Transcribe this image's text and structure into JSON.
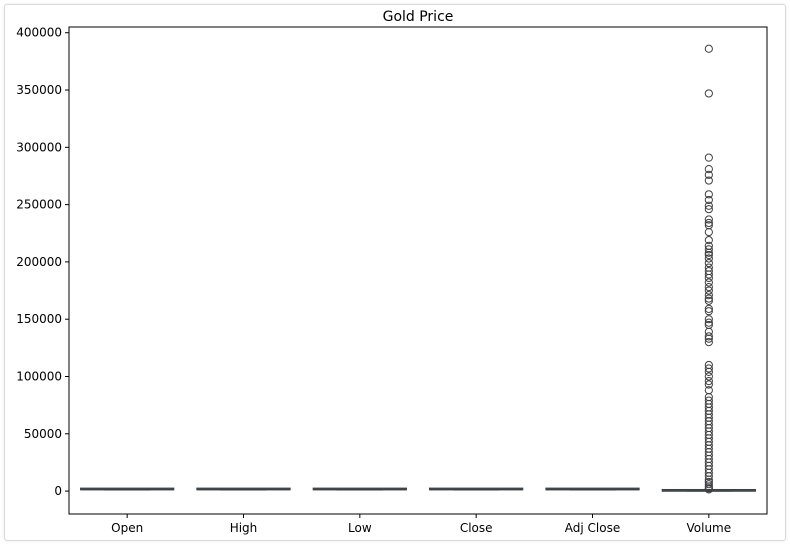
{
  "chart_data": {
    "type": "box",
    "title": "Gold Price",
    "xlabel": "",
    "ylabel": "",
    "ylim": [
      -20000,
      405000
    ],
    "yticks": [
      0,
      50000,
      100000,
      150000,
      200000,
      250000,
      300000,
      350000,
      400000
    ],
    "ytick_labels": [
      "0",
      "50000",
      "100000",
      "150000",
      "200000",
      "250000",
      "300000",
      "350000",
      "400000"
    ],
    "grid": false,
    "categories": [
      "Open",
      "High",
      "Low",
      "Close",
      "Adj Close",
      "Volume"
    ],
    "boxes": [
      {
        "name": "Open",
        "q1": 1200,
        "median": 1300,
        "q3": 1600,
        "whisker_low": 1000,
        "whisker_high": 1900,
        "outliers": []
      },
      {
        "name": "High",
        "q1": 1200,
        "median": 1300,
        "q3": 1600,
        "whisker_low": 1000,
        "whisker_high": 1900,
        "outliers": []
      },
      {
        "name": "Low",
        "q1": 1200,
        "median": 1300,
        "q3": 1600,
        "whisker_low": 1000,
        "whisker_high": 1900,
        "outliers": []
      },
      {
        "name": "Close",
        "q1": 1200,
        "median": 1300,
        "q3": 1600,
        "whisker_low": 1000,
        "whisker_high": 1900,
        "outliers": []
      },
      {
        "name": "Adj Close",
        "q1": 1200,
        "median": 1300,
        "q3": 1600,
        "whisker_low": 1000,
        "whisker_high": 1900,
        "outliers": []
      },
      {
        "name": "Volume",
        "q1": 0,
        "median": 100,
        "q3": 300,
        "whisker_low": 0,
        "whisker_high": 700,
        "outliers": [
          386000,
          347000,
          291000,
          281000,
          276000,
          271000,
          259000,
          254000,
          249000,
          246000,
          237000,
          234000,
          232000,
          226000,
          219000,
          214000,
          211000,
          208000,
          206000,
          203000,
          199000,
          195000,
          192000,
          189000,
          186000,
          182000,
          178000,
          175000,
          171000,
          168000,
          166000,
          159000,
          157000,
          150000,
          147000,
          145000,
          139000,
          135000,
          133000,
          130000,
          110000,
          107000,
          104000,
          100000,
          96000,
          93000,
          88000,
          82000,
          79000,
          76000,
          73000,
          70000,
          67000,
          64000,
          61000,
          58000,
          55000,
          52000,
          49000,
          46000,
          43000,
          40000,
          37000,
          34000,
          31000,
          28000,
          25000,
          22000,
          19000,
          16000,
          13000,
          10000,
          8000,
          6000,
          4000,
          2500,
          1500
        ]
      }
    ]
  }
}
